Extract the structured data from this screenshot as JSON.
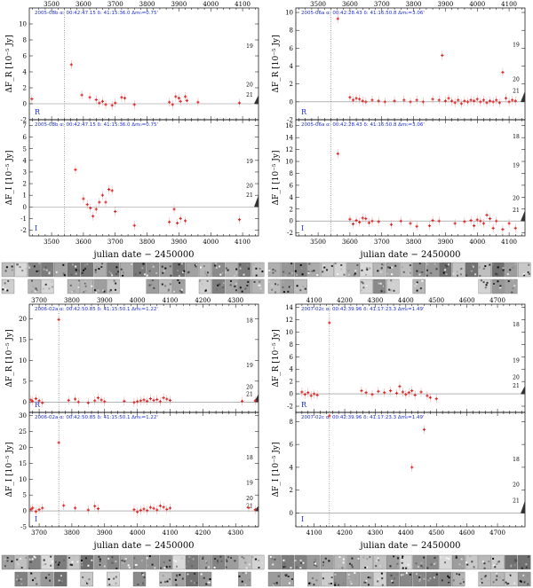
{
  "chart_data": [
    {
      "id": "p1",
      "type": "scatter",
      "header": "2005-08b   α: 00:42:47.15  δ: 41:15:36.0   Δm₀=0.75'",
      "x_ticks": [
        3500,
        3600,
        3700,
        3800,
        3900,
        4000,
        4100
      ],
      "xlim": [
        3430,
        4150
      ],
      "xlabel": "julian date − 2450000",
      "vline_x": 3540,
      "panels": [
        {
          "band": "R",
          "ylabel": "ΔF_R [10⁻⁵ Jy]",
          "ylim": [
            -2,
            12
          ],
          "y_ticks": [
            -2,
            0,
            2,
            4,
            6,
            8,
            10
          ],
          "mag_labels": [
            {
              "text": "19",
              "y": 7.2
            },
            {
              "text": "20",
              "y": 2.4
            },
            {
              "text": "21",
              "y": 1.1
            }
          ],
          "points": [
            [
              3438,
              0.6
            ],
            [
              3562,
              4.9
            ],
            [
              3595,
              1.1
            ],
            [
              3620,
              0.8
            ],
            [
              3640,
              0.5
            ],
            [
              3650,
              0.1
            ],
            [
              3660,
              0.3
            ],
            [
              3670,
              -0.1
            ],
            [
              3690,
              -0.2
            ],
            [
              3700,
              0.1
            ],
            [
              3720,
              0.8
            ],
            [
              3730,
              0.7
            ],
            [
              3760,
              -0.1
            ],
            [
              3870,
              0.2
            ],
            [
              3880,
              -0.1
            ],
            [
              3890,
              0.9
            ],
            [
              3900,
              0.7
            ],
            [
              3905,
              0.3
            ],
            [
              3920,
              0.9
            ],
            [
              3925,
              0.4
            ],
            [
              3960,
              0.2
            ],
            [
              4090,
              0.1
            ]
          ]
        },
        {
          "band": "I",
          "ylabel": "ΔF_I [10⁻⁵ Jy]",
          "ylim": [
            -2.5,
            7.5
          ],
          "y_ticks": [
            -2,
            -1,
            0,
            1,
            2,
            3,
            4,
            5,
            6,
            7
          ],
          "mag_labels": [
            {
              "text": "19",
              "y": 3.9
            },
            {
              "text": "20",
              "y": 1.8
            },
            {
              "text": "21",
              "y": 1.0
            }
          ],
          "points": [
            [
              3575,
              3.2
            ],
            [
              3600,
              0.7
            ],
            [
              3612,
              0.2
            ],
            [
              3622,
              -0.1
            ],
            [
              3630,
              -0.8
            ],
            [
              3640,
              -0.2
            ],
            [
              3650,
              0.4
            ],
            [
              3660,
              1.0
            ],
            [
              3670,
              0.4
            ],
            [
              3680,
              1.5
            ],
            [
              3690,
              1.4
            ],
            [
              3700,
              -0.4
            ],
            [
              3760,
              -1.6
            ],
            [
              3870,
              -1.3
            ],
            [
              3885,
              -0.2
            ],
            [
              3895,
              -1.4
            ],
            [
              3905,
              -1.0
            ],
            [
              3920,
              -1.2
            ],
            [
              4090,
              -1.1
            ]
          ]
        }
      ]
    },
    {
      "id": "p2",
      "type": "scatter",
      "header": "2005-06a   α: 00:42:28.43  δ: 41:16:50.8   Δm₀=3.06'",
      "x_ticks": [
        3500,
        3600,
        3700,
        3800,
        3900,
        4000,
        4100
      ],
      "xlim": [
        3430,
        4150
      ],
      "xlabel": "julian date − 2450000",
      "vline_x": 3540,
      "panels": [
        {
          "band": "R",
          "ylabel": "ΔF_R [10⁻⁵ Jy]",
          "ylim": [
            -2,
            10.5
          ],
          "y_ticks": [
            -2,
            0,
            2,
            4,
            6,
            8,
            10
          ],
          "mag_labels": [
            {
              "text": "19",
              "y": 6.4
            },
            {
              "text": "20",
              "y": 2.5
            },
            {
              "text": "21",
              "y": 1.2
            }
          ],
          "points": [
            [
              3562,
              9.3
            ],
            [
              3600,
              0.5
            ],
            [
              3610,
              0.2
            ],
            [
              3620,
              0.4
            ],
            [
              3630,
              0.3
            ],
            [
              3640,
              0.1
            ],
            [
              3650,
              0.0
            ],
            [
              3670,
              0.2
            ],
            [
              3690,
              0.1
            ],
            [
              3710,
              0.0
            ],
            [
              3740,
              0.1
            ],
            [
              3770,
              0.2
            ],
            [
              3790,
              0.0
            ],
            [
              3810,
              0.2
            ],
            [
              3830,
              0.0
            ],
            [
              3860,
              0.3
            ],
            [
              3880,
              0.2
            ],
            [
              3890,
              5.2
            ],
            [
              3900,
              0.1
            ],
            [
              3910,
              0.4
            ],
            [
              3920,
              0.1
            ],
            [
              3930,
              -0.1
            ],
            [
              3940,
              0.2
            ],
            [
              3950,
              -0.2
            ],
            [
              3960,
              0.1
            ],
            [
              3970,
              0.0
            ],
            [
              3980,
              0.2
            ],
            [
              3990,
              0.1
            ],
            [
              4000,
              0.3
            ],
            [
              4010,
              0.0
            ],
            [
              4020,
              0.2
            ],
            [
              4030,
              -0.1
            ],
            [
              4040,
              0.1
            ],
            [
              4050,
              0.0
            ],
            [
              4060,
              0.2
            ],
            [
              4070,
              -0.1
            ],
            [
              4080,
              3.3
            ],
            [
              4090,
              0.4
            ],
            [
              4100,
              0.0
            ],
            [
              4110,
              0.2
            ],
            [
              4120,
              0.1
            ]
          ]
        },
        {
          "band": "I",
          "ylabel": "ΔF_I [10⁻⁵ Jy]",
          "ylim": [
            -2.5,
            17
          ],
          "y_ticks": [
            -2,
            0,
            2,
            4,
            6,
            8,
            10,
            12,
            14,
            16
          ],
          "mag_labels": [
            {
              "text": "18",
              "y": 14.2
            },
            {
              "text": "19",
              "y": 9.3
            },
            {
              "text": "20",
              "y": 3.8
            },
            {
              "text": "21",
              "y": 1.8
            }
          ],
          "points": [
            [
              3562,
              11.3
            ],
            [
              3600,
              0.3
            ],
            [
              3610,
              -0.5
            ],
            [
              3620,
              0.1
            ],
            [
              3630,
              -0.2
            ],
            [
              3640,
              0.5
            ],
            [
              3650,
              0.4
            ],
            [
              3660,
              -0.3
            ],
            [
              3670,
              0.0
            ],
            [
              3690,
              -0.1
            ],
            [
              3730,
              -0.6
            ],
            [
              3760,
              0.0
            ],
            [
              3790,
              -0.4
            ],
            [
              3810,
              -0.9
            ],
            [
              3850,
              -0.8
            ],
            [
              3860,
              0.1
            ],
            [
              3880,
              0.0
            ],
            [
              3930,
              -0.4
            ],
            [
              3960,
              -0.1
            ],
            [
              3980,
              0.1
            ],
            [
              3990,
              -0.8
            ],
            [
              4000,
              0.2
            ],
            [
              4010,
              0.0
            ],
            [
              4020,
              -0.4
            ],
            [
              4030,
              1.0
            ],
            [
              4040,
              0.4
            ],
            [
              4050,
              -1.2
            ],
            [
              4060,
              0.0
            ],
            [
              4080,
              -1.4
            ],
            [
              4100,
              -0.4
            ],
            [
              4120,
              -1.2
            ]
          ]
        }
      ]
    },
    {
      "id": "p3",
      "type": "scatter",
      "header": "2006-02a   α: 00:42:50.85  δ: 41:15:50.1   Δm₀=1.22'",
      "x_ticks": [
        3700,
        3800,
        3900,
        4000,
        4100,
        4200,
        4300
      ],
      "xlim": [
        3670,
        4370
      ],
      "xlabel": "julian date − 2450000",
      "vline_x": 3760,
      "panels": [
        {
          "band": "R",
          "ylabel": "ΔF_R [10⁻⁵ Jy]",
          "ylim": [
            -2.5,
            23.5
          ],
          "y_ticks": [
            0,
            5,
            10,
            15,
            20
          ],
          "mag_labels": [
            {
              "text": "18",
              "y": 19.6
            },
            {
              "text": "19",
              "y": 8.8
            },
            {
              "text": "20",
              "y": 3.6
            },
            {
              "text": "21",
              "y": 1.9
            }
          ],
          "points": [
            [
              3675,
              0.5
            ],
            [
              3680,
              0.2
            ],
            [
              3690,
              0.8
            ],
            [
              3700,
              0.3
            ],
            [
              3710,
              -0.2
            ],
            [
              3760,
              19.8
            ],
            [
              3790,
              0.4
            ],
            [
              3810,
              0.7
            ],
            [
              3820,
              0.0
            ],
            [
              3850,
              -0.2
            ],
            [
              3870,
              0.3
            ],
            [
              3880,
              1.0
            ],
            [
              3890,
              0.5
            ],
            [
              3900,
              0.1
            ],
            [
              3960,
              0.2
            ],
            [
              3990,
              -0.1
            ],
            [
              4000,
              0.1
            ],
            [
              4010,
              0.3
            ],
            [
              4020,
              0.5
            ],
            [
              4030,
              0.2
            ],
            [
              4040,
              0.8
            ],
            [
              4050,
              0.4
            ],
            [
              4060,
              0.6
            ],
            [
              4070,
              0.1
            ],
            [
              4080,
              1.0
            ],
            [
              4090,
              0.7
            ],
            [
              4100,
              0.4
            ],
            [
              4320,
              0.2
            ],
            [
              4360,
              0.3
            ]
          ]
        },
        {
          "band": "I",
          "ylabel": "ΔF_I [10⁻⁵ Jy]",
          "ylim": [
            -5,
            31
          ],
          "y_ticks": [
            -5,
            0,
            5,
            10,
            15,
            20,
            25,
            30
          ],
          "mag_labels": [
            {
              "text": "18",
              "y": 16.8
            },
            {
              "text": "19",
              "y": 8.8
            },
            {
              "text": "20",
              "y": 3.9
            },
            {
              "text": "21",
              "y": 1.6
            }
          ],
          "points": [
            [
              3675,
              0.5
            ],
            [
              3680,
              0.9
            ],
            [
              3690,
              -0.2
            ],
            [
              3700,
              0.4
            ],
            [
              3710,
              0.9
            ],
            [
              3760,
              21.5
            ],
            [
              3775,
              1.7
            ],
            [
              3810,
              0.9
            ],
            [
              3850,
              0.3
            ],
            [
              3870,
              1.5
            ],
            [
              3880,
              0.7
            ],
            [
              3990,
              0.4
            ],
            [
              4000,
              -0.3
            ],
            [
              4010,
              0.2
            ],
            [
              4020,
              0.6
            ],
            [
              4030,
              0.1
            ],
            [
              4040,
              1.1
            ],
            [
              4050,
              0.8
            ],
            [
              4060,
              0.3
            ],
            [
              4070,
              1.6
            ],
            [
              4080,
              1.2
            ],
            [
              4090,
              0.5
            ],
            [
              4100,
              0.9
            ],
            [
              4340,
              1.0
            ],
            [
              4360,
              0.4
            ]
          ]
        }
      ]
    },
    {
      "id": "p4",
      "type": "scatter",
      "header": "2007-02c   α: 00:42:39.96  δ: 41:17:23.3   Δm₀=1.49'",
      "x_ticks": [
        4100,
        4200,
        4300,
        4400,
        4500,
        4600,
        4700
      ],
      "xlim": [
        4040,
        4790
      ],
      "xlabel": "julian date − 2450000",
      "vline_x": 4150,
      "panels": [
        {
          "band": "R",
          "ylabel": "ΔF_R [10⁻⁵ Jy]",
          "ylim": [
            -3,
            14.5
          ],
          "y_ticks": [
            -2,
            0,
            2,
            4,
            6,
            8,
            10,
            12,
            14
          ],
          "mag_labels": [
            {
              "text": "18",
              "y": 11.2
            },
            {
              "text": "19",
              "y": 5.4
            },
            {
              "text": "20",
              "y": 2.7
            },
            {
              "text": "21",
              "y": 1.3
            }
          ],
          "points": [
            [
              4060,
              0.3
            ],
            [
              4070,
              -0.1
            ],
            [
              4080,
              0.2
            ],
            [
              4090,
              -0.3
            ],
            [
              4100,
              0.0
            ],
            [
              4110,
              -0.2
            ],
            [
              4150,
              11.5
            ],
            [
              4255,
              0.5
            ],
            [
              4270,
              0.2
            ],
            [
              4290,
              -0.1
            ],
            [
              4310,
              0.4
            ],
            [
              4330,
              0.2
            ],
            [
              4350,
              0.5
            ],
            [
              4370,
              0.1
            ],
            [
              4380,
              1.2
            ],
            [
              4390,
              0.3
            ],
            [
              4400,
              -0.1
            ],
            [
              4410,
              0.2
            ],
            [
              4420,
              0.5
            ],
            [
              4430,
              -0.2
            ],
            [
              4450,
              0.3
            ],
            [
              4470,
              -0.3
            ],
            [
              4480,
              -0.6
            ],
            [
              4500,
              -0.8
            ]
          ]
        },
        {
          "band": "I",
          "ylabel": "ΔF_I [10⁻⁵ Jy]",
          "ylim": [
            -1.2,
            8.8
          ],
          "y_ticks": [
            0,
            2,
            4,
            6,
            8
          ],
          "mag_labels": [
            {
              "text": "18",
              "y": 4.7
            },
            {
              "text": "20",
              "y": 2.5
            },
            {
              "text": "21",
              "y": 1.1
            }
          ],
          "points": [
            [
              4150,
              8.5
            ],
            [
              4420,
              4.0
            ],
            [
              4460,
              7.3
            ]
          ]
        }
      ]
    }
  ]
}
